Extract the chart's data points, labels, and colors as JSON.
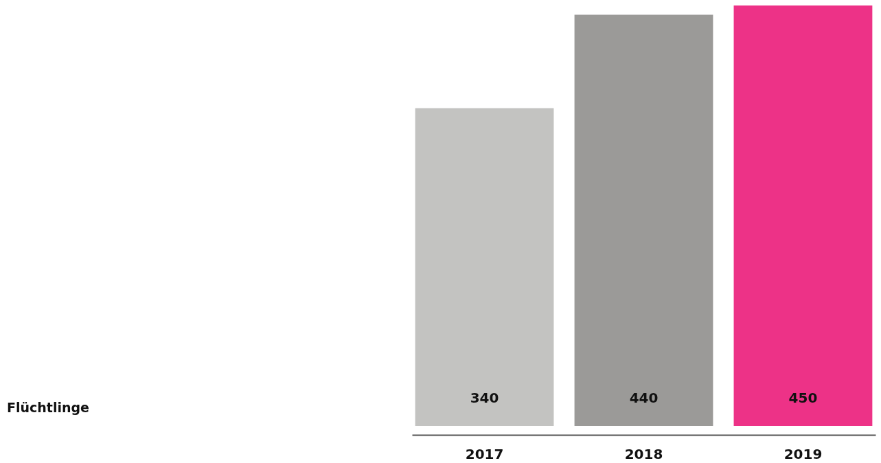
{
  "chart_data": {
    "type": "bar",
    "title": "Flüchtlinge",
    "categories": [
      "2017",
      "2018",
      "2019"
    ],
    "values": [
      340,
      440,
      450
    ],
    "colors": [
      "#c3c3c1",
      "#9b9a98",
      "#ed3287"
    ],
    "data_labels": true
  }
}
